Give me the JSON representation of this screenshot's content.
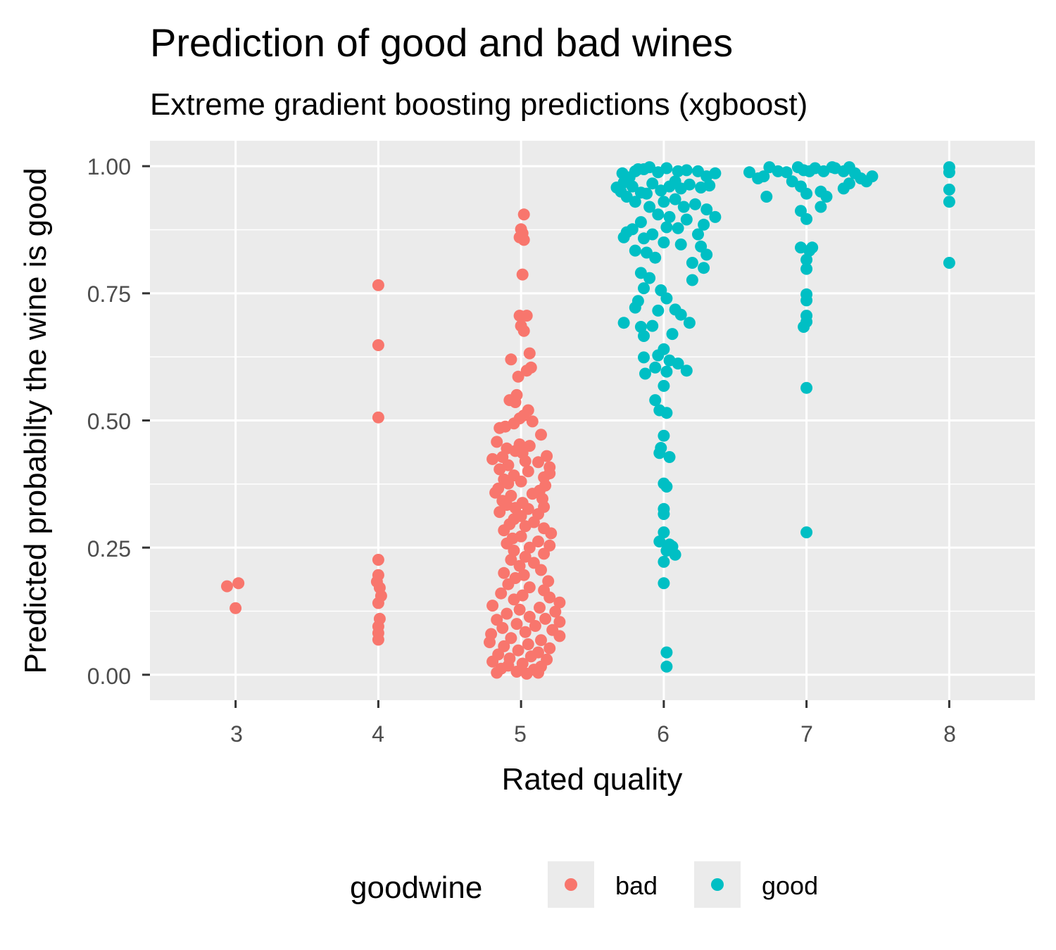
{
  "chart_data": {
    "type": "scatter",
    "title": "Prediction of good and bad wines",
    "subtitle": "Extreme gradient boosting predictions (xgboost)",
    "xlabel": "Rated quality",
    "ylabel": "Predicted probabilty the wine is good",
    "x_ticks": [
      "3",
      "4",
      "5",
      "6",
      "7",
      "8"
    ],
    "y_ticks": [
      "0.00",
      "0.25",
      "0.50",
      "0.75",
      "1.00"
    ],
    "xlim": [
      2.4,
      8.6
    ],
    "ylim": [
      -0.05,
      1.05
    ],
    "grid": true,
    "legend": {
      "title": "goodwine",
      "position": "bottom",
      "entries": [
        {
          "label": "bad",
          "color": "#F8766D"
        },
        {
          "label": "good",
          "color": "#00BFC4"
        }
      ]
    },
    "series": [
      {
        "name": "bad",
        "color": "#F8766D",
        "points": [
          [
            2.94,
            0.174
          ],
          [
            3.02,
            0.18
          ],
          [
            3.0,
            0.131
          ],
          [
            4.0,
            0.766
          ],
          [
            4.0,
            0.648
          ],
          [
            4.0,
            0.506
          ],
          [
            4.0,
            0.226
          ],
          [
            4.0,
            0.196
          ],
          [
            3.99,
            0.183
          ],
          [
            4.01,
            0.171
          ],
          [
            4.02,
            0.155
          ],
          [
            4.0,
            0.141
          ],
          [
            4.01,
            0.11
          ],
          [
            4.0,
            0.095
          ],
          [
            4.0,
            0.082
          ],
          [
            4.0,
            0.069
          ],
          [
            5.02,
            0.905
          ],
          [
            5.0,
            0.876
          ],
          [
            5.01,
            0.868
          ],
          [
            4.99,
            0.86
          ],
          [
            5.02,
            0.855
          ],
          [
            5.01,
            0.787
          ],
          [
            4.99,
            0.706
          ],
          [
            5.04,
            0.706
          ],
          [
            5.0,
            0.686
          ],
          [
            5.02,
            0.676
          ],
          [
            5.06,
            0.632
          ],
          [
            4.93,
            0.62
          ],
          [
            5.07,
            0.604
          ],
          [
            5.04,
            0.598
          ],
          [
            4.98,
            0.586
          ],
          [
            4.97,
            0.55
          ],
          [
            4.92,
            0.54
          ],
          [
            4.96,
            0.536
          ],
          [
            5.05,
            0.52
          ],
          [
            5.02,
            0.51
          ],
          [
            4.99,
            0.504
          ],
          [
            5.08,
            0.498
          ],
          [
            4.95,
            0.494
          ],
          [
            4.89,
            0.488
          ],
          [
            4.85,
            0.485
          ],
          [
            5.14,
            0.472
          ],
          [
            4.83,
            0.458
          ],
          [
            4.99,
            0.453
          ],
          [
            5.06,
            0.45
          ],
          [
            4.9,
            0.445
          ],
          [
            4.96,
            0.44
          ],
          [
            5.01,
            0.436
          ],
          [
            5.18,
            0.43
          ],
          [
            4.87,
            0.428
          ],
          [
            4.8,
            0.424
          ],
          [
            5.03,
            0.42
          ],
          [
            5.12,
            0.418
          ],
          [
            4.91,
            0.412
          ],
          [
            5.2,
            0.408
          ],
          [
            4.85,
            0.404
          ],
          [
            5.05,
            0.4
          ],
          [
            5.2,
            0.396
          ],
          [
            4.95,
            0.392
          ],
          [
            5.16,
            0.388
          ],
          [
            4.88,
            0.384
          ],
          [
            5.0,
            0.38
          ],
          [
            4.91,
            0.376
          ],
          [
            5.17,
            0.372
          ],
          [
            4.84,
            0.366
          ],
          [
            5.13,
            0.362
          ],
          [
            4.82,
            0.358
          ],
          [
            5.08,
            0.356
          ],
          [
            4.93,
            0.352
          ],
          [
            5.15,
            0.346
          ],
          [
            4.87,
            0.342
          ],
          [
            5.01,
            0.338
          ],
          [
            4.9,
            0.334
          ],
          [
            5.16,
            0.33
          ],
          [
            4.96,
            0.328
          ],
          [
            5.05,
            0.326
          ],
          [
            4.85,
            0.32
          ],
          [
            5.12,
            0.316
          ],
          [
            5.0,
            0.312
          ],
          [
            4.95,
            0.306
          ],
          [
            5.09,
            0.3
          ],
          [
            4.92,
            0.296
          ],
          [
            5.03,
            0.292
          ],
          [
            5.16,
            0.288
          ],
          [
            4.88,
            0.284
          ],
          [
            5.21,
            0.278
          ],
          [
            5.0,
            0.272
          ],
          [
            4.94,
            0.268
          ],
          [
            5.12,
            0.262
          ],
          [
            4.9,
            0.258
          ],
          [
            5.2,
            0.254
          ],
          [
            5.06,
            0.25
          ],
          [
            4.95,
            0.244
          ],
          [
            5.16,
            0.238
          ],
          [
            5.03,
            0.232
          ],
          [
            4.93,
            0.226
          ],
          [
            5.09,
            0.22
          ],
          [
            4.99,
            0.214
          ],
          [
            5.14,
            0.206
          ],
          [
            4.88,
            0.2
          ],
          [
            5.02,
            0.196
          ],
          [
            4.96,
            0.19
          ],
          [
            5.19,
            0.184
          ],
          [
            4.91,
            0.178
          ],
          [
            5.06,
            0.172
          ],
          [
            5.16,
            0.166
          ],
          [
            4.86,
            0.16
          ],
          [
            5.01,
            0.156
          ],
          [
            5.2,
            0.152
          ],
          [
            4.95,
            0.148
          ],
          [
            5.27,
            0.142
          ],
          [
            4.8,
            0.136
          ],
          [
            5.13,
            0.132
          ],
          [
            4.99,
            0.128
          ],
          [
            5.24,
            0.124
          ],
          [
            4.9,
            0.12
          ],
          [
            5.06,
            0.114
          ],
          [
            5.17,
            0.11
          ],
          [
            4.83,
            0.108
          ],
          [
            5.27,
            0.104
          ],
          [
            4.97,
            0.1
          ],
          [
            5.1,
            0.096
          ],
          [
            4.87,
            0.092
          ],
          [
            5.22,
            0.088
          ],
          [
            5.03,
            0.084
          ],
          [
            4.79,
            0.08
          ],
          [
            5.27,
            0.076
          ],
          [
            4.93,
            0.072
          ],
          [
            5.14,
            0.068
          ],
          [
            4.78,
            0.064
          ],
          [
            5.05,
            0.06
          ],
          [
            4.88,
            0.056
          ],
          [
            5.2,
            0.052
          ],
          [
            4.98,
            0.048
          ],
          [
            5.12,
            0.044
          ],
          [
            4.84,
            0.04
          ],
          [
            5.07,
            0.036
          ],
          [
            4.92,
            0.032
          ],
          [
            5.18,
            0.03
          ],
          [
            4.8,
            0.026
          ],
          [
            5.01,
            0.022
          ],
          [
            4.91,
            0.018
          ],
          [
            5.14,
            0.016
          ],
          [
            4.86,
            0.012
          ],
          [
            5.09,
            0.01
          ],
          [
            4.97,
            0.006
          ],
          [
            5.12,
            0.004
          ],
          [
            4.83,
            0.004
          ],
          [
            5.04,
            0.002
          ]
        ]
      },
      {
        "name": "good",
        "color": "#00BFC4",
        "points": [
          [
            5.67,
            0.958
          ],
          [
            5.72,
            0.968
          ],
          [
            5.71,
            0.986
          ],
          [
            5.76,
            0.978
          ],
          [
            5.8,
            0.99
          ],
          [
            5.82,
            0.994
          ],
          [
            5.86,
            0.994
          ],
          [
            5.9,
            0.998
          ],
          [
            5.96,
            0.988
          ],
          [
            6.02,
            0.996
          ],
          [
            6.1,
            0.99
          ],
          [
            6.16,
            0.992
          ],
          [
            6.24,
            0.99
          ],
          [
            6.3,
            0.98
          ],
          [
            6.36,
            0.986
          ],
          [
            5.7,
            0.95
          ],
          [
            5.74,
            0.94
          ],
          [
            5.78,
            0.96
          ],
          [
            5.84,
            0.948
          ],
          [
            5.88,
            0.946
          ],
          [
            5.92,
            0.966
          ],
          [
            5.98,
            0.952
          ],
          [
            6.04,
            0.96
          ],
          [
            6.08,
            0.97
          ],
          [
            6.12,
            0.956
          ],
          [
            6.18,
            0.964
          ],
          [
            6.26,
            0.958
          ],
          [
            6.32,
            0.962
          ],
          [
            5.8,
            0.93
          ],
          [
            5.9,
            0.92
          ],
          [
            6.0,
            0.93
          ],
          [
            6.08,
            0.935
          ],
          [
            6.14,
            0.92
          ],
          [
            6.22,
            0.925
          ],
          [
            6.3,
            0.915
          ],
          [
            6.36,
            0.9
          ],
          [
            5.96,
            0.905
          ],
          [
            6.04,
            0.9
          ],
          [
            6.16,
            0.895
          ],
          [
            6.28,
            0.885
          ],
          [
            5.84,
            0.89
          ],
          [
            5.78,
            0.876
          ],
          [
            5.74,
            0.87
          ],
          [
            5.92,
            0.866
          ],
          [
            6.02,
            0.88
          ],
          [
            6.1,
            0.878
          ],
          [
            6.24,
            0.866
          ],
          [
            5.72,
            0.86
          ],
          [
            5.86,
            0.858
          ],
          [
            6.0,
            0.85
          ],
          [
            6.12,
            0.846
          ],
          [
            6.26,
            0.842
          ],
          [
            5.8,
            0.834
          ],
          [
            5.88,
            0.83
          ],
          [
            5.94,
            0.82
          ],
          [
            6.3,
            0.826
          ],
          [
            6.2,
            0.81
          ],
          [
            5.84,
            0.79
          ],
          [
            5.9,
            0.78
          ],
          [
            6.28,
            0.8
          ],
          [
            6.2,
            0.776
          ],
          [
            5.86,
            0.76
          ],
          [
            5.98,
            0.756
          ],
          [
            6.02,
            0.74
          ],
          [
            5.82,
            0.735
          ],
          [
            6.08,
            0.718
          ],
          [
            5.8,
            0.722
          ],
          [
            6.12,
            0.708
          ],
          [
            5.96,
            0.716
          ],
          [
            6.18,
            0.692
          ],
          [
            5.72,
            0.692
          ],
          [
            5.84,
            0.684
          ],
          [
            5.92,
            0.686
          ],
          [
            5.86,
            0.666
          ],
          [
            6.06,
            0.67
          ],
          [
            6.0,
            0.64
          ],
          [
            5.96,
            0.628
          ],
          [
            5.86,
            0.624
          ],
          [
            6.04,
            0.618
          ],
          [
            6.1,
            0.612
          ],
          [
            5.94,
            0.604
          ],
          [
            6.02,
            0.596
          ],
          [
            5.87,
            0.592
          ],
          [
            6.16,
            0.598
          ],
          [
            6.0,
            0.568
          ],
          [
            5.94,
            0.54
          ],
          [
            5.97,
            0.52
          ],
          [
            6.02,
            0.515
          ],
          [
            6.0,
            0.47
          ],
          [
            5.98,
            0.446
          ],
          [
            5.97,
            0.436
          ],
          [
            6.04,
            0.428
          ],
          [
            6.0,
            0.376
          ],
          [
            6.02,
            0.37
          ],
          [
            6.0,
            0.326
          ],
          [
            6.0,
            0.316
          ],
          [
            6.0,
            0.28
          ],
          [
            5.97,
            0.262
          ],
          [
            6.04,
            0.256
          ],
          [
            6.06,
            0.252
          ],
          [
            6.02,
            0.244
          ],
          [
            6.08,
            0.236
          ],
          [
            6.0,
            0.222
          ],
          [
            6.0,
            0.18
          ],
          [
            6.02,
            0.044
          ],
          [
            6.02,
            0.016
          ],
          [
            6.6,
            0.988
          ],
          [
            6.66,
            0.976
          ],
          [
            6.7,
            0.98
          ],
          [
            6.74,
            0.998
          ],
          [
            6.8,
            0.99
          ],
          [
            6.86,
            0.988
          ],
          [
            6.94,
            0.998
          ],
          [
            6.98,
            0.992
          ],
          [
            7.02,
            0.99
          ],
          [
            7.06,
            0.996
          ],
          [
            7.12,
            0.99
          ],
          [
            7.18,
            0.998
          ],
          [
            7.2,
            0.996
          ],
          [
            7.26,
            0.99
          ],
          [
            7.3,
            0.998
          ],
          [
            7.34,
            0.986
          ],
          [
            7.38,
            0.976
          ],
          [
            7.42,
            0.97
          ],
          [
            7.46,
            0.98
          ],
          [
            6.72,
            0.94
          ],
          [
            6.9,
            0.97
          ],
          [
            6.96,
            0.96
          ],
          [
            7.0,
            0.946
          ],
          [
            7.1,
            0.95
          ],
          [
            7.14,
            0.94
          ],
          [
            7.26,
            0.956
          ],
          [
            7.3,
            0.966
          ],
          [
            6.96,
            0.912
          ],
          [
            7.1,
            0.92
          ],
          [
            7.0,
            0.896
          ],
          [
            6.96,
            0.84
          ],
          [
            7.02,
            0.834
          ],
          [
            7.04,
            0.84
          ],
          [
            7.0,
            0.816
          ],
          [
            7.0,
            0.798
          ],
          [
            7.0,
            0.748
          ],
          [
            7.0,
            0.736
          ],
          [
            7.0,
            0.706
          ],
          [
            7.0,
            0.694
          ],
          [
            6.98,
            0.684
          ],
          [
            7.0,
            0.564
          ],
          [
            7.0,
            0.28
          ],
          [
            8.0,
            0.998
          ],
          [
            8.0,
            0.988
          ],
          [
            8.0,
            0.954
          ],
          [
            8.0,
            0.93
          ],
          [
            8.0,
            0.81
          ]
        ]
      }
    ]
  }
}
